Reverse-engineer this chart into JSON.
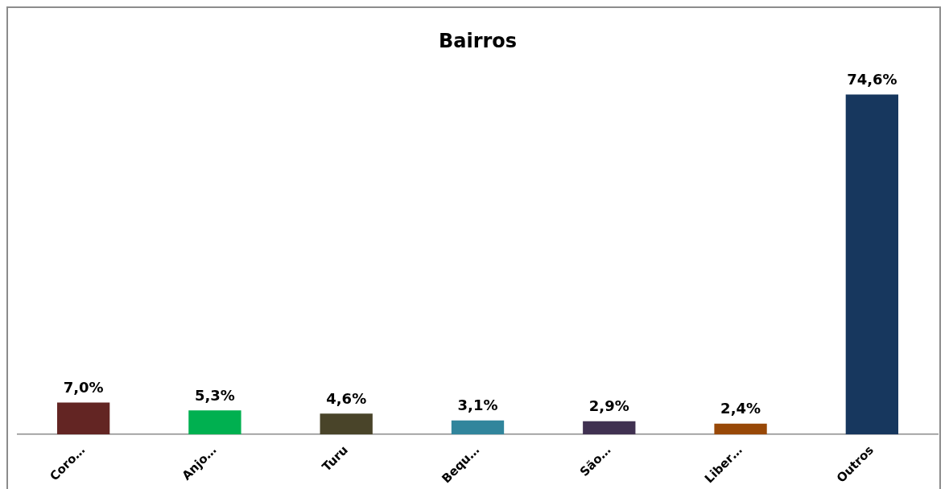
{
  "chart_data": {
    "type": "bar",
    "title": "Bairros",
    "categories": [
      "Coro…",
      "Anjo…",
      "Turu",
      "Bequ…",
      "São…",
      "Liber…",
      "Outros"
    ],
    "values": [
      7.0,
      5.3,
      4.6,
      3.1,
      2.9,
      2.4,
      74.6
    ],
    "colors": [
      "#632523",
      "#00b050",
      "#494429",
      "#31859c",
      "#403151",
      "#984807",
      "#17375e"
    ],
    "value_labels": [
      "7,0%",
      "5,3%",
      "4,6%",
      "3,1%",
      "2,9%",
      "2,4%",
      "74,6%"
    ],
    "grid": false,
    "legend": false
  }
}
